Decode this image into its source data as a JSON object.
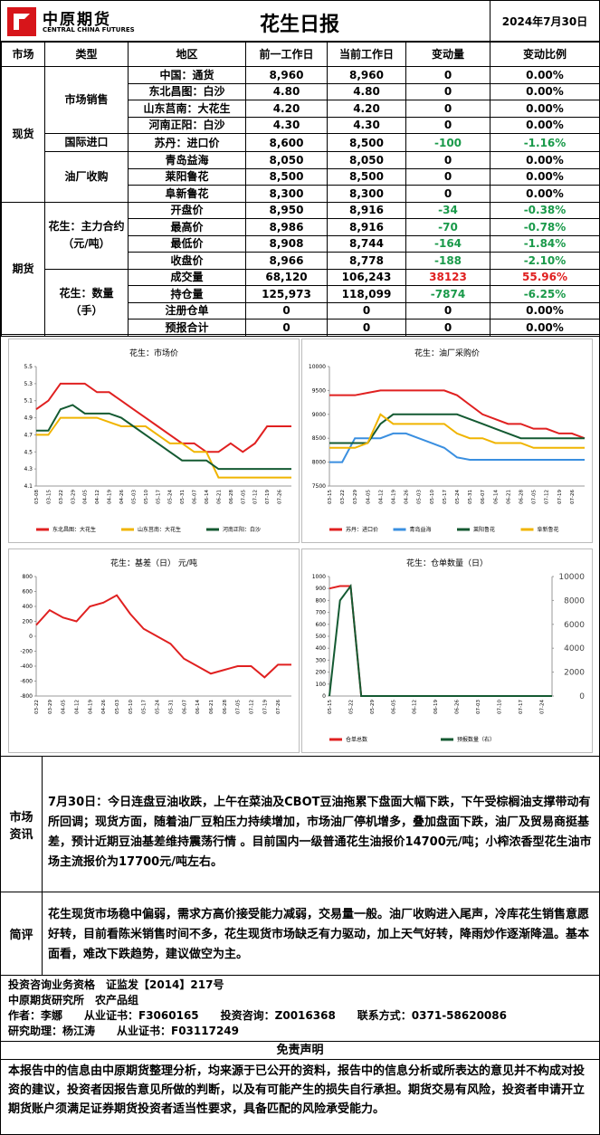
{
  "header": {
    "logo_cn": "中原期货",
    "logo_en": "CENTRAL CHINA FUTURES",
    "title": "花生日报",
    "date": "2024年7月30日"
  },
  "table": {
    "header": [
      "市场",
      "类型",
      "地区",
      "前一工作日",
      "当前工作日",
      "变动量",
      "变动比例"
    ],
    "markets": [
      {
        "name": "现货",
        "groups": [
          {
            "name": "市场销售",
            "rows": [
              [
                "中国：通货",
                "8,960",
                "8,960",
                "0",
                "0.00%"
              ],
              [
                "东北昌图：白沙",
                "4.80",
                "4.80",
                "0",
                "0.00%"
              ],
              [
                "山东莒南：大花生",
                "4.20",
                "4.20",
                "0",
                "0.00%"
              ],
              [
                "河南正阳：白沙",
                "4.30",
                "4.30",
                "0",
                "0.00%"
              ]
            ]
          },
          {
            "name": "国际进口",
            "rows": [
              [
                "苏丹：进口价",
                "8,600",
                "8,500",
                "-100",
                "-1.16%"
              ]
            ]
          },
          {
            "name": "油厂收购",
            "rows": [
              [
                "青岛益海",
                "8,050",
                "8,050",
                "0",
                "0.00%"
              ],
              [
                "莱阳鲁花",
                "8,500",
                "8,500",
                "0",
                "0.00%"
              ],
              [
                "阜新鲁花",
                "8,300",
                "8,300",
                "0",
                "0.00%"
              ]
            ]
          }
        ]
      },
      {
        "name": "期货",
        "groups": [
          {
            "name": "花生：主力合约（元/吨）",
            "rows": [
              [
                "开盘价",
                "8,950",
                "8,916",
                "-34",
                "-0.38%"
              ],
              [
                "最高价",
                "8,986",
                "8,916",
                "-70",
                "-0.78%"
              ],
              [
                "最低价",
                "8,908",
                "8,744",
                "-164",
                "-1.84%"
              ],
              [
                "收盘价",
                "8,966",
                "8,778",
                "-188",
                "-2.10%"
              ]
            ]
          },
          {
            "name": "花生：数量（手）",
            "rows": [
              [
                "成交量",
                "68,120",
                "106,243",
                "38123",
                "55.96%"
              ],
              [
                "持仓量",
                "125,973",
                "118,099",
                "-7874",
                "-6.25%"
              ],
              [
                "注册仓单",
                "0",
                "0",
                "0",
                "0.00%"
              ],
              [
                "预报合计",
                "0",
                "0",
                "0",
                "0.00%"
              ]
            ]
          }
        ]
      }
    ]
  },
  "chart_data": [
    {
      "type": "line",
      "title": "花生：市场价",
      "categories": [
        "03-08",
        "03-15",
        "03-22",
        "03-29",
        "04-05",
        "04-12",
        "04-19",
        "04-26",
        "05-03",
        "05-10",
        "05-17",
        "05-24",
        "05-31",
        "06-07",
        "06-14",
        "06-21",
        "06-28",
        "07-05",
        "07-12",
        "07-19",
        "07-26",
        null
      ],
      "series": [
        {
          "name": "东北昌图：大花生",
          "color": "#e02020",
          "values": [
            5.0,
            5.1,
            5.3,
            5.3,
            5.3,
            5.2,
            5.2,
            5.1,
            5.0,
            4.9,
            4.8,
            4.7,
            4.6,
            4.6,
            4.5,
            4.5,
            4.6,
            4.5,
            4.6,
            4.8,
            4.8,
            4.8
          ]
        },
        {
          "name": "山东莒南：大花生",
          "color": "#f0b400",
          "values": [
            4.7,
            4.7,
            4.9,
            4.9,
            4.9,
            4.9,
            4.85,
            4.8,
            4.8,
            4.8,
            4.7,
            4.6,
            4.6,
            4.5,
            4.5,
            4.2,
            4.2,
            4.2,
            4.2,
            4.2,
            4.2,
            4.2
          ]
        },
        {
          "name": "河南正阳：白沙",
          "color": "#145a32",
          "values": [
            4.75,
            4.75,
            5.0,
            5.05,
            4.95,
            4.95,
            4.95,
            4.9,
            4.8,
            4.7,
            4.6,
            4.5,
            4.4,
            4.4,
            4.4,
            4.3,
            4.3,
            4.3,
            4.3,
            4.3,
            4.3,
            4.3
          ]
        }
      ],
      "ylim": [
        4.1,
        5.5
      ],
      "yticks": [
        4.1,
        4.3,
        4.5,
        4.7,
        4.9,
        5.1,
        5.3,
        5.5
      ]
    },
    {
      "type": "line",
      "title": "花生：油厂采购价",
      "categories": [
        "03-15",
        "03-22",
        "03-29",
        "04-05",
        "04-12",
        "04-19",
        "04-26",
        "05-03",
        "05-10",
        "05-17",
        "05-24",
        "05-31",
        "06-07",
        "06-14",
        "06-21",
        "06-28",
        "07-05",
        "07-12",
        "07-19",
        "07-26",
        null
      ],
      "series": [
        {
          "name": "苏丹：进口价",
          "color": "#e02020",
          "values": [
            9400,
            9400,
            9400,
            9450,
            9500,
            9500,
            9500,
            9500,
            9500,
            9500,
            9400,
            9200,
            9000,
            8900,
            8800,
            8800,
            8700,
            8700,
            8600,
            8600,
            8500
          ]
        },
        {
          "name": "青岛益海",
          "color": "#3a8fe0",
          "values": [
            8000,
            8000,
            8500,
            8500,
            8500,
            8600,
            8600,
            8500,
            8400,
            8300,
            8100,
            8050,
            8050,
            8050,
            8050,
            8050,
            8050,
            8050,
            8050,
            8050,
            8050
          ]
        },
        {
          "name": "莱阳鲁花",
          "color": "#145a32",
          "values": [
            8400,
            8400,
            8400,
            8400,
            8800,
            9000,
            9000,
            9000,
            9000,
            9000,
            9000,
            8900,
            8800,
            8700,
            8600,
            8500,
            8500,
            8500,
            8500,
            8500,
            8500
          ]
        },
        {
          "name": "阜新鲁花",
          "color": "#f0b400",
          "values": [
            8300,
            8300,
            8300,
            8400,
            9000,
            8800,
            8800,
            8800,
            8800,
            8800,
            8600,
            8500,
            8500,
            8400,
            8400,
            8400,
            8300,
            8300,
            8300,
            8300,
            8300
          ]
        }
      ],
      "ylim": [
        7500,
        10000
      ],
      "yticks": [
        7500,
        8000,
        8500,
        9000,
        9500,
        10000
      ]
    },
    {
      "type": "line",
      "title": "花生：基差（日） 元/吨",
      "categories": [
        "03-22",
        "03-29",
        "04-05",
        "04-12",
        "04-19",
        "04-26",
        "05-03",
        "05-10",
        "05-17",
        "05-24",
        "05-31",
        "06-07",
        "06-14",
        "06-21",
        "06-28",
        "07-05",
        "07-12",
        "07-19",
        "07-26",
        null
      ],
      "values": [
        150,
        350,
        250,
        200,
        400,
        450,
        550,
        300,
        100,
        0,
        -100,
        -300,
        -400,
        -500,
        -450,
        -400,
        -400,
        -550,
        -380,
        -380
      ],
      "color": "#e02020",
      "ylim": [
        -800,
        800
      ],
      "yticks": [
        -800,
        -600,
        -400,
        -200,
        0,
        200,
        400,
        600,
        800
      ]
    },
    {
      "type": "line",
      "title": "花生：仓单数量（日）",
      "categories": [
        "05-15",
        null,
        "05-22",
        null,
        "05-29",
        null,
        "06-05",
        null,
        "06-12",
        null,
        "06-19",
        null,
        "06-26",
        null,
        "07-03",
        null,
        "07-10",
        null,
        "07-17",
        null,
        "07-24",
        null
      ],
      "series": [
        {
          "name": "仓单总数",
          "color": "#e02020",
          "values": [
            900,
            920,
            920,
            0,
            0,
            0,
            0,
            0,
            0,
            0,
            0,
            0,
            0,
            0,
            0,
            0,
            0,
            0,
            0,
            0,
            0,
            0
          ]
        },
        {
          "name": "预报数量（右）",
          "color": "#145a32",
          "axis": "y2",
          "values": [
            0,
            8000,
            9200,
            0,
            0,
            0,
            0,
            0,
            0,
            0,
            0,
            0,
            0,
            0,
            0,
            0,
            0,
            0,
            0,
            0,
            0,
            0
          ]
        }
      ],
      "ylim": [
        0,
        1000
      ],
      "yticks": [
        0,
        100,
        200,
        300,
        400,
        500,
        600,
        700,
        800,
        900,
        1000
      ],
      "y2lim": [
        0,
        10000
      ],
      "y2ticks": [
        0,
        2000,
        4000,
        6000,
        8000,
        10000
      ]
    }
  ],
  "news": {
    "label": "市场资讯",
    "text": "7月30日：今日连盘豆油收跌，上午在菜油及CBOT豆油拖累下盘面大幅下跌，下午受棕榈油支撑带动有所回调；现货方面，随着油厂豆粕压力持续增加，市场油厂停机增多，叠加盘面下跌，油厂及贸易商挺基差，预计近期豆油基差维持震荡行情 。目前国内一级普通花生油报价14700元/吨；小榨浓香型花生油市场主流报价为17700元/吨左右。"
  },
  "comment": {
    "label": "简评",
    "text": "花生现货市场稳中偏弱，需求方高价接受能力减弱，交易量一般。油厂收购进入尾声，冷库花生销售意愿好转，目前看陈米销售时间不多，花生现货市场缺乏有力驱动，加上天气好转，降雨炒作逐渐降温。基本面看，难改下跌趋势，建议做空为主。"
  },
  "footer": {
    "lines": [
      "投资咨询业务资格　证监发【2014】217号",
      "中原期货研究所　农产品组",
      "作者：李娜　　从业证书：F3060165　　投资咨询：Z0016368　　联系方式：0371-58620086",
      "研究助理：杨江涛　　从业证书：F03117249"
    ]
  },
  "disclaimer": {
    "title": "免责声明",
    "text": "本报告中的信息由中原期货整理分析，均来源于已公开的资料，报告中的信息分析或所表达的意见并不构成对投资的建议，投资者因报告意见所做的判断，以及有可能产生的损失自行承担。期货交易有风险，投资者申请开立期货账户须满足证券期货投资者适当性要求，具备匹配的风险承受能力。"
  }
}
